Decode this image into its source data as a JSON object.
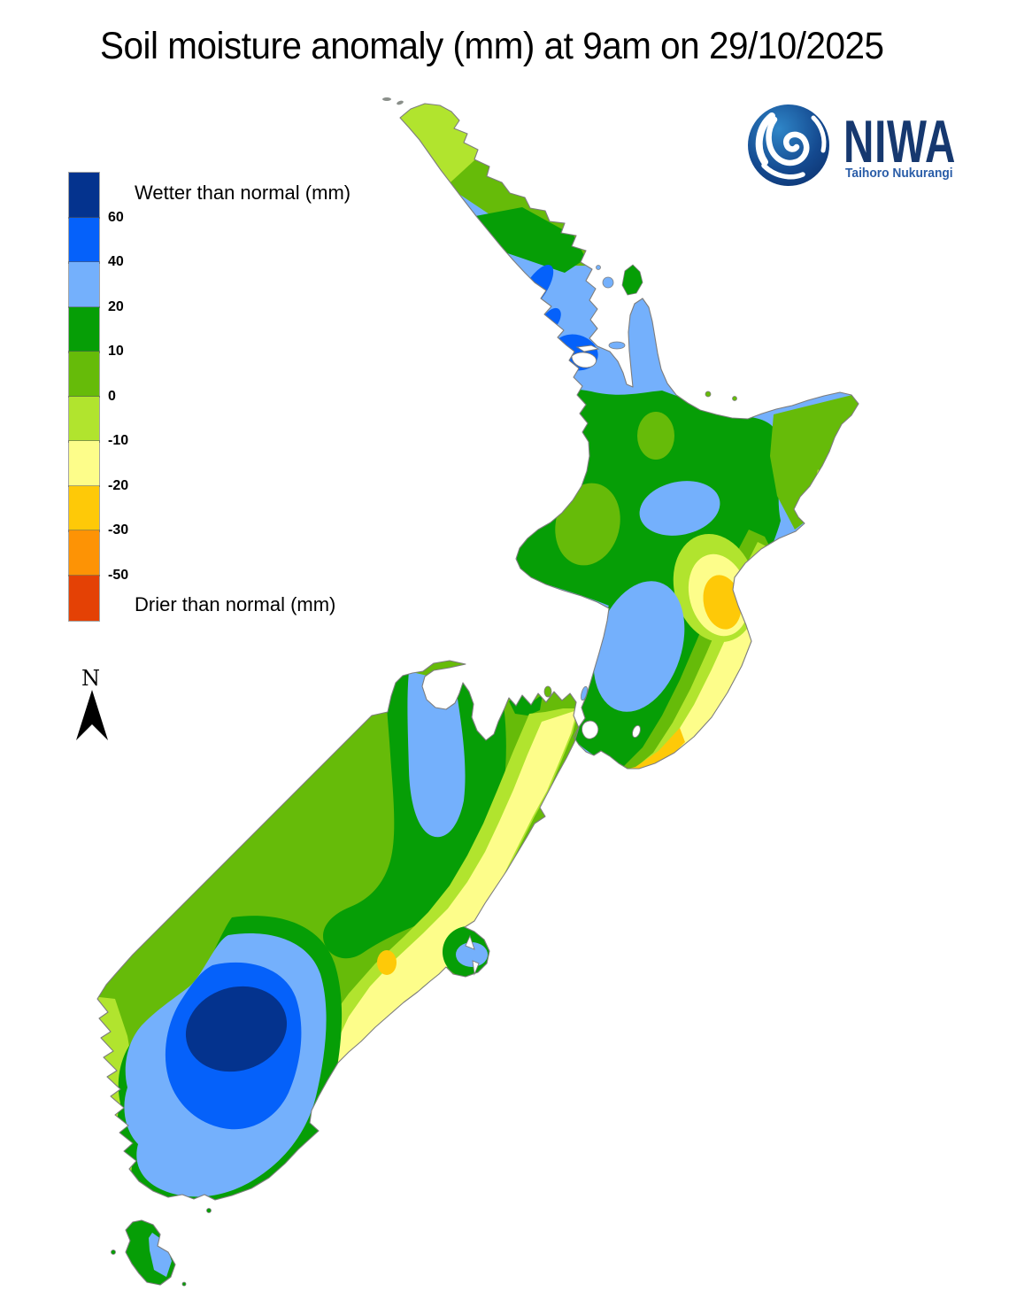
{
  "title": "Soil moisture anomaly (mm) at 9am on 29/10/2025",
  "legend": {
    "wetter_label": "Wetter than normal (mm)",
    "drier_label": "Drier than normal (mm)",
    "entries": [
      {
        "label": "60",
        "color": "#04338e"
      },
      {
        "label": "40",
        "color": "#0561fa"
      },
      {
        "label": "20",
        "color": "#74b0fc"
      },
      {
        "label": "10",
        "color": "#069e06"
      },
      {
        "label": "0",
        "color": "#66bb09"
      },
      {
        "label": "-10",
        "color": "#b1e42e"
      },
      {
        "label": "-20",
        "color": "#fdfd8a"
      },
      {
        "label": "-30",
        "color": "#fec908"
      },
      {
        "label": "-50",
        "color": "#fd9305"
      },
      {
        "label": "",
        "color": "#e44105"
      }
    ]
  },
  "compass": {
    "label": "N"
  },
  "logo": {
    "name": "NIWA",
    "tagline": "Taihoro Nukurangi",
    "navy": "#16386f",
    "blue": "#2a5da8"
  },
  "map": {
    "coast_color": "#7d7d7d"
  }
}
